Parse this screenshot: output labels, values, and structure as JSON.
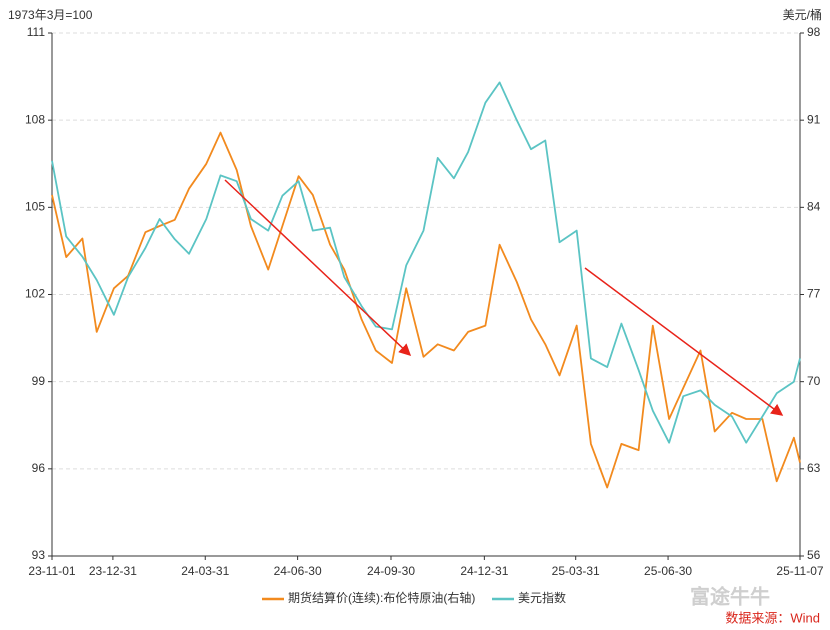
{
  "chart_data": {
    "type": "line",
    "y_label": "1973年3月=100",
    "y2_label": "美元/桶",
    "x": [
      "23-11-01",
      "23-11-15",
      "23-12-01",
      "23-12-15",
      "24-01-01",
      "24-01-15",
      "24-02-01",
      "24-02-15",
      "24-03-01",
      "24-03-15",
      "24-04-01",
      "24-04-15",
      "24-05-01",
      "24-05-15",
      "24-06-01",
      "24-06-15",
      "24-07-01",
      "24-07-15",
      "24-08-01",
      "24-08-15",
      "24-09-01",
      "24-09-15",
      "24-10-01",
      "24-10-15",
      "24-11-01",
      "24-11-15",
      "24-12-01",
      "24-12-15",
      "25-01-01",
      "25-01-15",
      "25-02-01",
      "25-02-15",
      "25-03-01",
      "25-03-15",
      "25-04-01",
      "25-04-15",
      "25-05-01",
      "25-05-15",
      "25-06-01",
      "25-06-15",
      "25-07-01",
      "25-07-15",
      "25-08-01",
      "25-08-15",
      "25-09-01",
      "25-09-15",
      "25-10-01",
      "25-10-15",
      "25-11-01",
      "25-11-07"
    ],
    "series": [
      {
        "name": "期货结算价(连续):布伦特原油(右轴)",
        "color": "#f28a1e",
        "axis": "y2",
        "values": [
          85,
          80,
          81.5,
          74,
          77.5,
          78.5,
          82,
          82.5,
          83,
          85.5,
          87.5,
          90,
          87,
          82.5,
          79,
          82.5,
          86.5,
          85,
          81,
          79,
          75,
          72.5,
          71.5,
          77.5,
          72,
          73,
          72.5,
          74,
          74.5,
          81,
          78,
          75,
          73,
          70.5,
          74.5,
          65,
          61.5,
          65,
          64.5,
          74.5,
          67,
          69.5,
          72.5,
          66,
          67.5,
          67,
          67,
          62,
          65.5,
          63.5
        ]
      },
      {
        "name": "美元指数",
        "color": "#5bc4c4",
        "values": [
          106.6,
          104.0,
          103.3,
          102.5,
          101.3,
          102.6,
          103.6,
          104.6,
          103.9,
          103.4,
          104.6,
          106.1,
          105.9,
          104.6,
          104.2,
          105.4,
          105.9,
          104.2,
          104.3,
          102.6,
          101.6,
          100.9,
          100.8,
          103.0,
          104.2,
          106.7,
          106.0,
          106.9,
          108.6,
          109.3,
          108.0,
          107.0,
          107.3,
          103.8,
          104.2,
          99.8,
          99.5,
          101.0,
          99.4,
          98.0,
          96.9,
          98.5,
          98.7,
          98.2,
          97.8,
          96.9,
          97.8,
          98.6,
          99.0,
          99.8
        ]
      }
    ],
    "xlim": [
      "23-11-01",
      "25-11-07"
    ],
    "xticks": [
      "23-11-01",
      "23-12-31",
      "24-03-31",
      "24-06-30",
      "24-09-30",
      "24-12-31",
      "25-03-31",
      "25-06-30",
      "25-11-07"
    ],
    "ylim": [
      93,
      111
    ],
    "yticks": [
      93,
      96,
      99,
      102,
      105,
      108,
      111
    ],
    "y2lim": [
      56,
      98
    ],
    "y2ticks": [
      56,
      63,
      70,
      77,
      84,
      91,
      98
    ],
    "grid": true,
    "source": "数据来源：Wind",
    "watermark": "富途牛牛"
  }
}
